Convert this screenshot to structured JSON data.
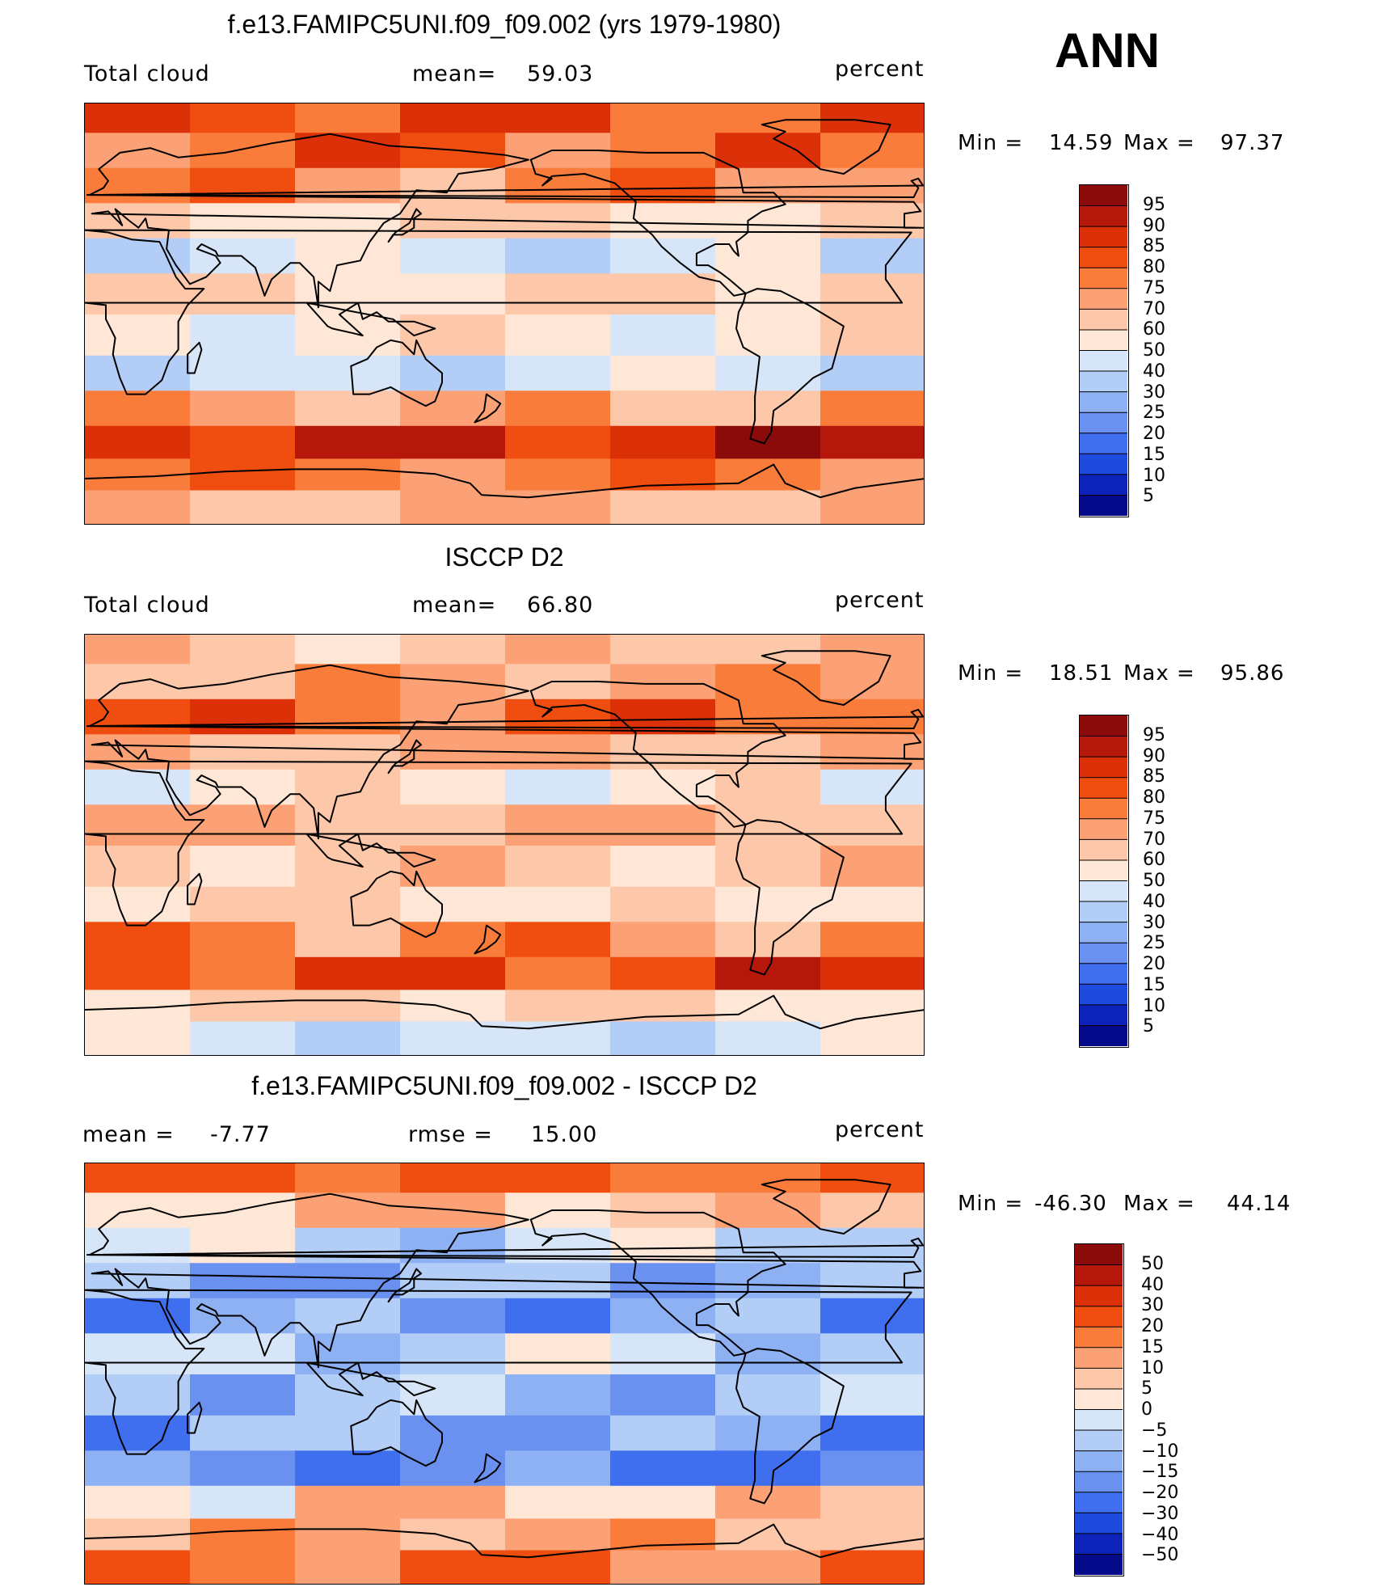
{
  "season": "ANN",
  "chart_data": [
    {
      "type": "heatmap",
      "title": "f.e13.FAMIPC5UNI.f09_f09.002 (yrs 1979-1980)",
      "left_label": "Total cloud",
      "mean_label": "mean=",
      "mean_value": "59.03",
      "units": "percent",
      "min_label": "Min  =",
      "min_value": "14.59",
      "max_label": "Max  =",
      "max_value": "97.37",
      "colorbar_levels": [
        "95",
        "90",
        "85",
        "80",
        "75",
        "70",
        "60",
        "50",
        "40",
        "30",
        "25",
        "20",
        "15",
        "10",
        "5"
      ],
      "colorbar_colors": [
        "#8B0A0A",
        "#B5170A",
        "#DC3009",
        "#F04E10",
        "#FA7C3A",
        "#FCA175",
        "#FDC7A9",
        "#FEE7D6",
        "#D6E6F8",
        "#B3CEF6",
        "#8EB1F3",
        "#6A91F0",
        "#3F6EEE",
        "#1E4ADE",
        "#0C22B8",
        "#050A8A"
      ],
      "zone_values": [
        {
          "lat": 85,
          "value": 82
        },
        {
          "lat": 70,
          "value": 80
        },
        {
          "lat": 55,
          "value": 75
        },
        {
          "lat": 40,
          "value": 60
        },
        {
          "lat": 25,
          "value": 45
        },
        {
          "lat": 10,
          "value": 62
        },
        {
          "lat": -10,
          "value": 55
        },
        {
          "lat": -25,
          "value": 45
        },
        {
          "lat": -40,
          "value": 72
        },
        {
          "lat": -55,
          "value": 90
        },
        {
          "lat": -68,
          "value": 78
        },
        {
          "lat": -82,
          "value": 68
        }
      ]
    },
    {
      "type": "heatmap",
      "title": "ISCCP D2",
      "left_label": "Total cloud",
      "mean_label": "mean=",
      "mean_value": "66.80",
      "units": "percent",
      "min_label": "Min  =",
      "min_value": "18.51",
      "max_label": "Max  =",
      "max_value": "95.86",
      "colorbar_levels": [
        "95",
        "90",
        "85",
        "80",
        "75",
        "70",
        "60",
        "50",
        "40",
        "30",
        "25",
        "20",
        "15",
        "10",
        "5"
      ],
      "colorbar_colors": [
        "#8B0A0A",
        "#B5170A",
        "#DC3009",
        "#F04E10",
        "#FA7C3A",
        "#FCA175",
        "#FDC7A9",
        "#FEE7D6",
        "#D6E6F8",
        "#B3CEF6",
        "#8EB1F3",
        "#6A91F0",
        "#3F6EEE",
        "#1E4ADE",
        "#0C22B8",
        "#050A8A"
      ],
      "zone_values": [
        {
          "lat": 85,
          "value": 65
        },
        {
          "lat": 70,
          "value": 72
        },
        {
          "lat": 55,
          "value": 80
        },
        {
          "lat": 40,
          "value": 68
        },
        {
          "lat": 25,
          "value": 55
        },
        {
          "lat": 10,
          "value": 68
        },
        {
          "lat": -10,
          "value": 65
        },
        {
          "lat": -25,
          "value": 58
        },
        {
          "lat": -40,
          "value": 75
        },
        {
          "lat": -55,
          "value": 85
        },
        {
          "lat": -68,
          "value": 62
        },
        {
          "lat": -82,
          "value": 45
        }
      ]
    },
    {
      "type": "heatmap",
      "title": "f.e13.FAMIPC5UNI.f09_f09.002 - ISCCP D2",
      "left_label": "mean  =",
      "left_value": "-7.77",
      "mean_label": "rmse  =",
      "mean_value": "15.00",
      "units": "percent",
      "min_label": "Min  =",
      "min_value": "-46.30",
      "max_label": "Max  =",
      "max_value": "44.14",
      "colorbar_levels": [
        "50",
        "40",
        "30",
        "20",
        "15",
        "10",
        "5",
        "0",
        "-5",
        "-10",
        "-15",
        "-20",
        "-30",
        "-40",
        "-50"
      ],
      "colorbar_colors": [
        "#8B0A0A",
        "#B5170A",
        "#DC3009",
        "#F04E10",
        "#FA7C3A",
        "#FCA175",
        "#FDC7A9",
        "#FEE7D6",
        "#D6E6F8",
        "#B3CEF6",
        "#8EB1F3",
        "#6A91F0",
        "#3F6EEE",
        "#1E4ADE",
        "#0C22B8",
        "#050A8A"
      ],
      "zone_values": [
        {
          "lat": 85,
          "value": 22
        },
        {
          "lat": 70,
          "value": 8
        },
        {
          "lat": 55,
          "value": -5
        },
        {
          "lat": 40,
          "value": -12
        },
        {
          "lat": 25,
          "value": -15
        },
        {
          "lat": 10,
          "value": -6
        },
        {
          "lat": -10,
          "value": -10
        },
        {
          "lat": -25,
          "value": -14
        },
        {
          "lat": -40,
          "value": -20
        },
        {
          "lat": -55,
          "value": 6
        },
        {
          "lat": -68,
          "value": 12
        },
        {
          "lat": -82,
          "value": 18
        }
      ]
    }
  ]
}
